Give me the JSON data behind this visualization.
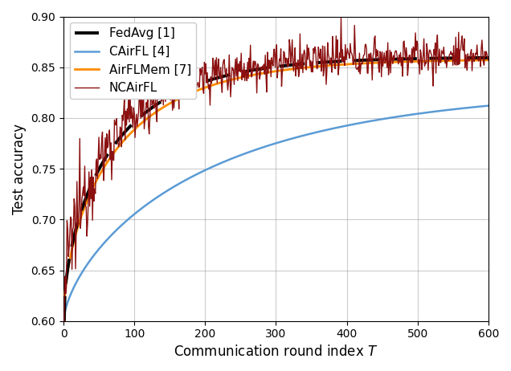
{
  "title": "",
  "xlabel": "Communication round index $T$",
  "ylabel": "Test accuracy",
  "xlim": [
    0,
    600
  ],
  "ylim": [
    0.6,
    0.9
  ],
  "xticks": [
    0,
    100,
    200,
    300,
    400,
    500,
    600
  ],
  "yticks": [
    0.6,
    0.65,
    0.7,
    0.75,
    0.8,
    0.85,
    0.9
  ],
  "grid": true,
  "lines": {
    "FedAvg [1]": {
      "color": "#000000",
      "linewidth": 2.8,
      "linestyle": "--",
      "dashes": [
        8,
        4
      ],
      "zorder": 4
    },
    "CAirFL [4]": {
      "color": "#5B9BD5",
      "linewidth": 1.8,
      "linestyle": "-",
      "zorder": 2
    },
    "AirFLMem [7]": {
      "color": "#FF8C00",
      "linewidth": 2.0,
      "linestyle": "-",
      "zorder": 3
    },
    "NCAirFL": {
      "color": "#8B1010",
      "linewidth": 1.0,
      "linestyle": "-",
      "zorder": 5
    }
  },
  "legend_loc": "upper left",
  "figsize": [
    6.36,
    4.62
  ],
  "dpi": 100
}
